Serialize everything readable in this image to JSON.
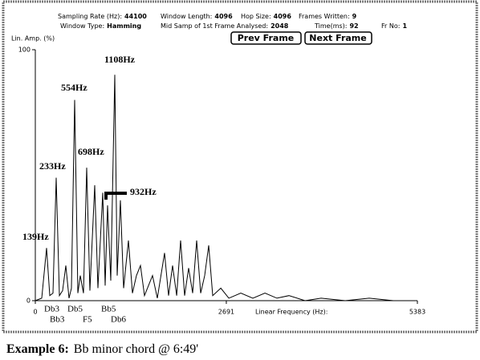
{
  "header": {
    "fields": [
      {
        "label": "Sampling Rate (Hz):",
        "value": 44100
      },
      {
        "label": "Window Length:",
        "value": 4096
      },
      {
        "label": "Hop Size:",
        "value": 4096
      },
      {
        "label": "Frames Written:",
        "value": 9
      },
      {
        "label": "Window Type:",
        "value": "Hamming"
      },
      {
        "label": "Mid Samp of 1st Frame Analysed:",
        "value": 2048
      },
      {
        "label": "Time(ms):",
        "value": 92
      },
      {
        "label": "Fr No:",
        "value": 1
      }
    ],
    "buttons": [
      "Prev Frame",
      "Next Frame"
    ]
  },
  "chart_data": {
    "type": "line",
    "y_label": "Lin. Amp. (%)",
    "x_label": "Linear Frequency (Hz):",
    "x": [
      0,
      90,
      158,
      204,
      249,
      294,
      339,
      385,
      430,
      475,
      509,
      554,
      599,
      633,
      679,
      724,
      769,
      837,
      882,
      950,
      984,
      1018,
      1063,
      1120,
      1154,
      1199,
      1244,
      1312,
      1368,
      1425,
      1482,
      1538,
      1651,
      1719,
      1821,
      1877,
      1934,
      1991,
      2047,
      2104,
      2160,
      2217,
      2273,
      2330,
      2386,
      2443,
      2499,
      2613,
      2726,
      2895,
      3065,
      3235,
      3404,
      3574,
      3800,
      4026,
      4366,
      4705,
      5044,
      5383
    ],
    "values": [
      0,
      1,
      21,
      2,
      3,
      49,
      2,
      4,
      14,
      1,
      5,
      80,
      3,
      10,
      3,
      53,
      4,
      46,
      5,
      43,
      6,
      38,
      8,
      90,
      10,
      40,
      5,
      24,
      3,
      10,
      14,
      2,
      10,
      1,
      19,
      2,
      14,
      2,
      24,
      2,
      13,
      3,
      24,
      3,
      10,
      22,
      2,
      5,
      1,
      3,
      1,
      3,
      1,
      2,
      0,
      1,
      0,
      1,
      0,
      0
    ],
    "color": "#000000",
    "xlim": [
      0,
      5383
    ],
    "xticks": [
      0,
      2691,
      5383
    ],
    "ylim": [
      0,
      100
    ],
    "yticks": [
      0,
      100
    ],
    "annotations": [
      "1108Hz",
      "554Hz",
      "698Hz",
      "233Hz",
      "932Hz",
      "139Hz"
    ],
    "notes": [
      "Db3",
      "Bb3",
      "Db5",
      "F5",
      "Bb5",
      "Db6"
    ]
  },
  "caption": {
    "label": "Example 6:",
    "text": "Bb minor chord @ 6:49'"
  }
}
